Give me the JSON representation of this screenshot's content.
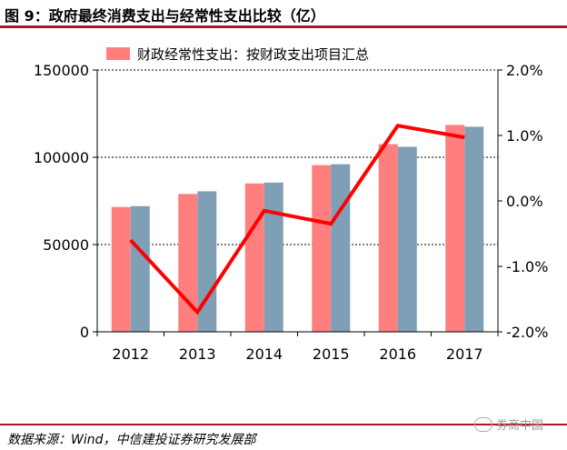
{
  "header": {
    "title": "图 9：政府最终消费支出与经常性支出比较（亿）"
  },
  "footer": {
    "source": "数据来源：Wind，中信建投证券研究发展部",
    "watermark": "券商中国"
  },
  "colors": {
    "bar_primary": "#ff7f7f",
    "bar_secondary": "#7f9fb6",
    "line": "#ff0000",
    "rule": "#b4122a"
  },
  "chart_data": {
    "type": "bar",
    "categories": [
      "2012",
      "2013",
      "2014",
      "2015",
      "2016",
      "2017"
    ],
    "series": [
      {
        "name": "财政经常性支出：按财政支出项目汇总",
        "type": "bar",
        "axis": "left",
        "values": [
          71500,
          79000,
          85000,
          95500,
          107500,
          118500
        ]
      },
      {
        "type": "bar",
        "axis": "left",
        "values": [
          72000,
          80500,
          85500,
          96000,
          106000,
          117500
        ]
      },
      {
        "type": "line",
        "axis": "right",
        "values": [
          -0.6,
          -1.7,
          -0.15,
          -0.35,
          1.15,
          0.97
        ]
      }
    ],
    "ylim": [
      0,
      150000
    ],
    "yticks": [
      "0",
      "50000",
      "100000",
      "150000"
    ],
    "y2lim": [
      -2.0,
      2.0
    ],
    "y2ticks": [
      "-2.0%",
      "-1.0%",
      "0.0%",
      "1.0%",
      "2.0%"
    ],
    "grid": "dotted horizontal",
    "legend": "top"
  }
}
